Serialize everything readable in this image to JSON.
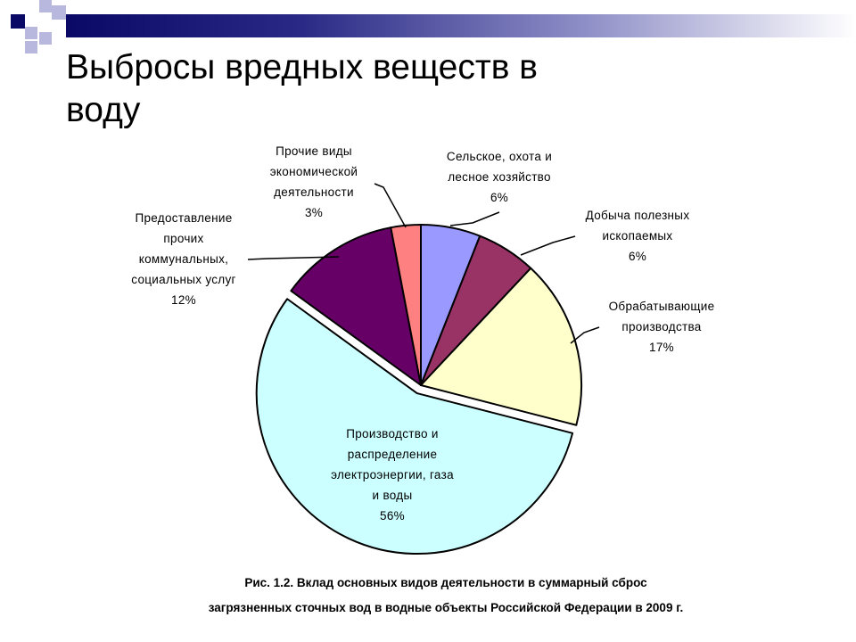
{
  "slide": {
    "title": "Выбросы вредных веществ в воду",
    "caption_line1": "Рис. 1.2. Вклад основных видов деятельности в суммарный сброс",
    "caption_line2": "загрязненных сточных вод в водные объекты Российской Федерации в 2009 г."
  },
  "colors": {
    "deco_dark": "#0a0a66",
    "deco_light": "#b8b8de"
  },
  "chart_data": {
    "type": "pie",
    "title": "",
    "slices": [
      {
        "label_lines": [
          "Сельское, охота и",
          "лесное хозяйство",
          "6%"
        ],
        "value": 6,
        "color": "#9999ff"
      },
      {
        "label_lines": [
          "Добыча полезных",
          "ископаемых",
          "6%"
        ],
        "value": 6,
        "color": "#993366"
      },
      {
        "label_lines": [
          "Обрабатывающие",
          "производства",
          "17%"
        ],
        "value": 17,
        "color": "#ffffcc"
      },
      {
        "label_lines": [
          "Производство и",
          "распределение",
          "электроэнергии, газа",
          "и воды",
          "56%"
        ],
        "value": 56,
        "color": "#ccffff"
      },
      {
        "label_lines": [
          "Предоставление",
          "прочих",
          "коммунальных,",
          "социальных услуг",
          "12%"
        ],
        "value": 12,
        "color": "#660066"
      },
      {
        "label_lines": [
          "Прочие виды",
          "экономической",
          "деятельности",
          "3%"
        ],
        "value": 3,
        "color": "#ff8080"
      }
    ]
  }
}
